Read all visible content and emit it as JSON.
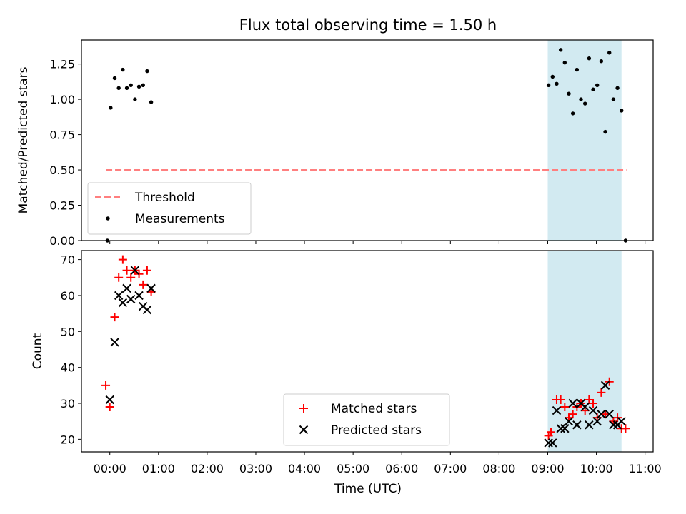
{
  "figure": {
    "title": "Flux total observing time = 1.50 h",
    "xlabel": "Time (UTC)"
  },
  "chart_data": [
    {
      "type": "scatter",
      "panel": "top",
      "ylabel": "Matched/Predicted stars",
      "xlim": [
        "-00:35",
        "11:10"
      ],
      "ylim": [
        0,
        1.42
      ],
      "y_ticks": [
        "0.00",
        "0.25",
        "0.50",
        "0.75",
        "1.00",
        "1.25"
      ],
      "grid": false,
      "legend": "lower-left",
      "shaded_span": {
        "x": [
          "09:00",
          "10:31"
        ],
        "color": "#add8e6"
      },
      "threshold": {
        "name": "Threshold",
        "y": 0.5,
        "x": [
          "-00:05",
          "10:37"
        ],
        "color": "#ff7f7f",
        "style": "dashed"
      },
      "series": [
        {
          "name": "Measurements",
          "marker": "dot",
          "color": "#000000",
          "points": [
            {
              "x": "-00:03",
              "y": 0.0
            },
            {
              "x": "00:01",
              "y": 0.94
            },
            {
              "x": "00:06",
              "y": 1.15
            },
            {
              "x": "00:11",
              "y": 1.08
            },
            {
              "x": "00:16",
              "y": 1.21
            },
            {
              "x": "00:21",
              "y": 1.08
            },
            {
              "x": "00:26",
              "y": 1.1
            },
            {
              "x": "00:31",
              "y": 1.0
            },
            {
              "x": "00:36",
              "y": 1.09
            },
            {
              "x": "00:41",
              "y": 1.1
            },
            {
              "x": "00:46",
              "y": 1.2
            },
            {
              "x": "00:51",
              "y": 0.98
            },
            {
              "x": "09:01",
              "y": 1.1
            },
            {
              "x": "09:06",
              "y": 1.16
            },
            {
              "x": "09:11",
              "y": 1.11
            },
            {
              "x": "09:16",
              "y": 1.35
            },
            {
              "x": "09:21",
              "y": 1.26
            },
            {
              "x": "09:26",
              "y": 1.04
            },
            {
              "x": "09:31",
              "y": 0.9
            },
            {
              "x": "09:36",
              "y": 1.21
            },
            {
              "x": "09:41",
              "y": 1.0
            },
            {
              "x": "09:46",
              "y": 0.97
            },
            {
              "x": "09:51",
              "y": 1.29
            },
            {
              "x": "09:56",
              "y": 1.07
            },
            {
              "x": "10:01",
              "y": 1.1
            },
            {
              "x": "10:06",
              "y": 1.27
            },
            {
              "x": "10:11",
              "y": 0.77
            },
            {
              "x": "10:16",
              "y": 1.33
            },
            {
              "x": "10:21",
              "y": 1.0
            },
            {
              "x": "10:26",
              "y": 1.08
            },
            {
              "x": "10:31",
              "y": 0.92
            },
            {
              "x": "10:36",
              "y": 0.0
            }
          ]
        }
      ]
    },
    {
      "type": "scatter",
      "panel": "bottom",
      "ylabel": "Count",
      "xlabel": "Time (UTC)",
      "xlim": [
        "-00:35",
        "11:10"
      ],
      "ylim": [
        16.5,
        72.5
      ],
      "x_ticks": [
        "00:00",
        "01:00",
        "02:00",
        "03:00",
        "04:00",
        "05:00",
        "06:00",
        "07:00",
        "08:00",
        "09:00",
        "10:00",
        "11:00"
      ],
      "y_ticks": [
        "20",
        "30",
        "40",
        "50",
        "60",
        "70"
      ],
      "grid": false,
      "legend": "lower-center",
      "shaded_span": {
        "x": [
          "09:00",
          "10:31"
        ],
        "color": "#add8e6"
      },
      "series": [
        {
          "name": "Matched stars",
          "marker": "plus",
          "color": "#ff0000",
          "points": [
            {
              "x": "-00:05",
              "y": 35
            },
            {
              "x": "00:00",
              "y": 29
            },
            {
              "x": "00:06",
              "y": 54
            },
            {
              "x": "00:11",
              "y": 65
            },
            {
              "x": "00:16",
              "y": 70
            },
            {
              "x": "00:21",
              "y": 67
            },
            {
              "x": "00:26",
              "y": 65
            },
            {
              "x": "00:31",
              "y": 67
            },
            {
              "x": "00:36",
              "y": 66
            },
            {
              "x": "00:41",
              "y": 63
            },
            {
              "x": "00:46",
              "y": 67
            },
            {
              "x": "00:51",
              "y": 61
            },
            {
              "x": "09:01",
              "y": 21
            },
            {
              "x": "09:04",
              "y": 22
            },
            {
              "x": "09:11",
              "y": 31
            },
            {
              "x": "09:16",
              "y": 31
            },
            {
              "x": "09:21",
              "y": 29
            },
            {
              "x": "09:26",
              "y": 26
            },
            {
              "x": "09:31",
              "y": 27
            },
            {
              "x": "09:36",
              "y": 29
            },
            {
              "x": "09:41",
              "y": 30
            },
            {
              "x": "09:46",
              "y": 28
            },
            {
              "x": "09:51",
              "y": 31
            },
            {
              "x": "09:56",
              "y": 30
            },
            {
              "x": "10:01",
              "y": 26
            },
            {
              "x": "10:06",
              "y": 33
            },
            {
              "x": "10:11",
              "y": 27
            },
            {
              "x": "10:16",
              "y": 36
            },
            {
              "x": "10:21",
              "y": 25
            },
            {
              "x": "10:26",
              "y": 26
            },
            {
              "x": "10:31",
              "y": 23
            },
            {
              "x": "10:36",
              "y": 23
            }
          ]
        },
        {
          "name": "Predicted stars",
          "marker": "x",
          "color": "#000000",
          "points": [
            {
              "x": "00:00",
              "y": 31
            },
            {
              "x": "00:06",
              "y": 47
            },
            {
              "x": "00:11",
              "y": 60
            },
            {
              "x": "00:16",
              "y": 58
            },
            {
              "x": "00:21",
              "y": 62
            },
            {
              "x": "00:26",
              "y": 59
            },
            {
              "x": "00:31",
              "y": 67
            },
            {
              "x": "00:36",
              "y": 60
            },
            {
              "x": "00:41",
              "y": 57
            },
            {
              "x": "00:46",
              "y": 56
            },
            {
              "x": "00:51",
              "y": 62
            },
            {
              "x": "09:01",
              "y": 19
            },
            {
              "x": "09:06",
              "y": 19
            },
            {
              "x": "09:11",
              "y": 28
            },
            {
              "x": "09:16",
              "y": 23
            },
            {
              "x": "09:21",
              "y": 23
            },
            {
              "x": "09:26",
              "y": 25
            },
            {
              "x": "09:31",
              "y": 30
            },
            {
              "x": "09:36",
              "y": 24
            },
            {
              "x": "09:41",
              "y": 30
            },
            {
              "x": "09:46",
              "y": 29
            },
            {
              "x": "09:51",
              "y": 24
            },
            {
              "x": "09:56",
              "y": 28
            },
            {
              "x": "10:01",
              "y": 25
            },
            {
              "x": "10:06",
              "y": 27
            },
            {
              "x": "10:11",
              "y": 35
            },
            {
              "x": "10:16",
              "y": 27
            },
            {
              "x": "10:21",
              "y": 24
            },
            {
              "x": "10:26",
              "y": 24
            },
            {
              "x": "10:31",
              "y": 25
            }
          ]
        }
      ]
    }
  ]
}
